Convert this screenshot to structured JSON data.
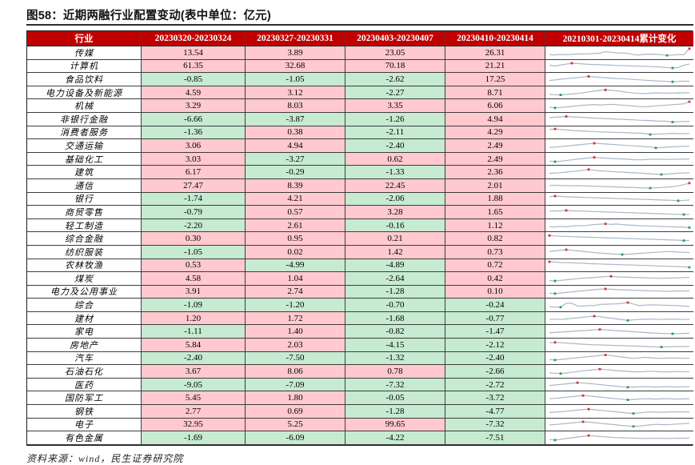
{
  "figure": {
    "title": "图58：近期两融行业配置变动(表中单位：亿元)",
    "source_note": "资料来源：wind，民生证券研究院"
  },
  "colors": {
    "header_bg": "#C00000",
    "header_text": "#FFFFFF",
    "positive_bg": "#FFC9CF",
    "negative_bg": "#C6EBD0",
    "industry_bg": "#FFFFFF",
    "spark_line": "#A9B8C7",
    "spark_high_marker": "#D9302C",
    "spark_low_marker": "#2E9E4F"
  },
  "chart_data": {
    "type": "table",
    "title": "图58：近期两融行业配置变动(表中单位：亿元)",
    "unit": "亿元",
    "columns": [
      "行业",
      "20230320-20230324",
      "20230327-20230331",
      "20230403-20230407",
      "20230410-20230414",
      "20210301-20230414累计变化"
    ],
    "cell_color_rule": "value >= 0 -> pink (#FFC9CF); value < 0 -> green (#C6EBD0)",
    "spark_legend": {
      "high_marker": "red dot = period high",
      "low_marker": "green dot = period low",
      "x_range": "20210301-20230414"
    },
    "rows": [
      {
        "industry": "传媒",
        "values": [
          13.54,
          3.89,
          23.05,
          26.31
        ],
        "spark": [
          30,
          28,
          33,
          30,
          34,
          38,
          36,
          40,
          42,
          46,
          62,
          56,
          50,
          48,
          44,
          30,
          28,
          33,
          36,
          33,
          30,
          22,
          26,
          31,
          29,
          95
        ]
      },
      {
        "industry": "计算机",
        "values": [
          61.35,
          32.68,
          70.18,
          21.21
        ],
        "spark": [
          55,
          46,
          58,
          66,
          76,
          72,
          68,
          64,
          62,
          60,
          58,
          55,
          52,
          50,
          48,
          46,
          44,
          42,
          40,
          38,
          34,
          30,
          24,
          30,
          55,
          68
        ]
      },
      {
        "industry": "食品饮料",
        "values": [
          -0.85,
          -1.05,
          -2.62,
          17.25
        ],
        "spark": [
          36,
          42,
          50,
          56,
          62,
          68,
          74,
          80,
          76,
          70,
          66,
          62,
          58,
          56,
          52,
          48,
          44,
          40,
          36,
          32,
          30,
          26,
          22,
          26,
          30,
          28
        ]
      },
      {
        "industry": "电力设备及新能源",
        "values": [
          4.59,
          3.12,
          -2.27,
          8.71
        ],
        "spark": [
          34,
          30,
          28,
          32,
          38,
          44,
          52,
          60,
          68,
          76,
          82,
          78,
          72,
          64,
          56,
          48,
          44,
          42,
          46,
          50,
          48,
          46,
          48,
          50,
          49,
          52
        ]
      },
      {
        "industry": "机械",
        "values": [
          3.29,
          8.03,
          3.35,
          6.06
        ],
        "spark": [
          32,
          26,
          30,
          36,
          42,
          48,
          54,
          58,
          62,
          58,
          60,
          64,
          60,
          56,
          52,
          46,
          40,
          38,
          42,
          48,
          52,
          56,
          60,
          64,
          70,
          92
        ]
      },
      {
        "industry": "非银行金融",
        "values": [
          -6.66,
          -3.87,
          -1.26,
          4.94
        ],
        "spark": [
          68,
          72,
          76,
          80,
          76,
          72,
          70,
          66,
          62,
          60,
          58,
          54,
          52,
          50,
          46,
          44,
          40,
          38,
          36,
          32,
          30,
          28,
          20,
          24,
          26,
          28
        ]
      },
      {
        "industry": "消费者服务",
        "values": [
          -1.36,
          0.38,
          -2.11,
          4.29
        ],
        "spark": [
          78,
          84,
          78,
          72,
          68,
          64,
          62,
          58,
          56,
          52,
          50,
          48,
          46,
          44,
          42,
          40,
          38,
          34,
          24,
          28,
          30,
          32,
          36,
          34,
          33,
          35
        ]
      },
      {
        "industry": "交通运输",
        "values": [
          3.06,
          4.94,
          -2.4,
          2.49
        ],
        "spark": [
          30,
          34,
          40,
          46,
          52,
          58,
          64,
          70,
          76,
          72,
          68,
          64,
          60,
          56,
          52,
          48,
          44,
          40,
          36,
          26,
          30,
          34,
          38,
          40,
          42,
          44
        ]
      },
      {
        "industry": "基础化工",
        "values": [
          3.03,
          -3.27,
          0.62,
          2.49
        ],
        "spark": [
          30,
          24,
          30,
          36,
          44,
          52,
          58,
          64,
          70,
          66,
          62,
          58,
          56,
          54,
          50,
          46,
          44,
          46,
          50,
          52,
          50,
          48,
          50,
          52,
          51,
          53
        ]
      },
      {
        "industry": "建筑",
        "values": [
          6.17,
          -0.29,
          -1.33,
          2.36
        ],
        "spark": [
          36,
          40,
          44,
          50,
          56,
          62,
          70,
          78,
          70,
          64,
          60,
          56,
          52,
          50,
          46,
          42,
          40,
          36,
          32,
          28,
          24,
          28,
          34,
          38,
          40,
          42
        ]
      },
      {
        "industry": "通信",
        "values": [
          27.47,
          8.39,
          22.45,
          2.01
        ],
        "spark": [
          52,
          54,
          52,
          50,
          48,
          50,
          48,
          46,
          44,
          42,
          40,
          38,
          36,
          34,
          32,
          30,
          28,
          26,
          24,
          28,
          30,
          34,
          40,
          48,
          60,
          78
        ]
      },
      {
        "industry": "银行",
        "values": [
          -1.74,
          4.21,
          -2.06,
          1.88
        ],
        "spark": [
          70,
          76,
          72,
          68,
          66,
          64,
          62,
          60,
          58,
          56,
          54,
          52,
          50,
          48,
          46,
          44,
          42,
          40,
          38,
          36,
          34,
          32,
          30,
          26,
          30,
          34
        ]
      },
      {
        "industry": "商贸零售",
        "values": [
          -0.79,
          0.57,
          3.28,
          1.65
        ],
        "spark": [
          60,
          62,
          64,
          68,
          64,
          62,
          60,
          58,
          56,
          54,
          52,
          50,
          48,
          46,
          44,
          42,
          40,
          38,
          36,
          34,
          32,
          30,
          28,
          26,
          24,
          26
        ]
      },
      {
        "industry": "轻工制造",
        "values": [
          -2.2,
          2.61,
          -0.16,
          1.12
        ],
        "spark": [
          40,
          36,
          42,
          38,
          46,
          52,
          48,
          56,
          62,
          66,
          70,
          64,
          68,
          62,
          58,
          54,
          50,
          48,
          46,
          44,
          42,
          40,
          38,
          36,
          34,
          30
        ]
      },
      {
        "industry": "综合金融",
        "values": [
          0.3,
          0.95,
          0.21,
          0.82
        ],
        "spark": [
          82,
          78,
          74,
          72,
          70,
          68,
          66,
          64,
          62,
          60,
          58,
          56,
          54,
          52,
          50,
          48,
          46,
          44,
          42,
          40,
          38,
          36,
          34,
          32,
          28,
          30
        ]
      },
      {
        "industry": "纺织服装",
        "values": [
          -1.05,
          0.02,
          1.42,
          0.73
        ],
        "spark": [
          58,
          64,
          70,
          76,
          70,
          64,
          58,
          52,
          46,
          40,
          36,
          32,
          28,
          24,
          28,
          32,
          36,
          40,
          44,
          48,
          52,
          56,
          54,
          50,
          48,
          46
        ]
      },
      {
        "industry": "农林牧渔",
        "values": [
          0.53,
          -4.99,
          -4.89,
          0.72
        ],
        "spark": [
          84,
          80,
          76,
          74,
          72,
          70,
          68,
          64,
          62,
          60,
          58,
          56,
          54,
          52,
          50,
          48,
          46,
          44,
          42,
          40,
          38,
          36,
          34,
          32,
          30,
          24
        ]
      },
      {
        "industry": "煤炭",
        "values": [
          4.58,
          1.04,
          -2.64,
          0.42
        ],
        "spark": [
          28,
          24,
          30,
          36,
          42,
          48,
          54,
          58,
          62,
          66,
          70,
          74,
          68,
          66,
          64,
          62,
          60,
          58,
          56,
          54,
          52,
          54,
          56,
          58,
          60,
          62
        ]
      },
      {
        "industry": "电力及公用事业",
        "values": [
          3.91,
          2.74,
          -1.28,
          0.1
        ],
        "spark": [
          30,
          26,
          32,
          38,
          44,
          50,
          56,
          62,
          68,
          72,
          76,
          72,
          68,
          66,
          64,
          62,
          60,
          58,
          56,
          54,
          52,
          50,
          52,
          54,
          53,
          55
        ]
      },
      {
        "industry": "综合",
        "values": [
          -1.09,
          -1.2,
          -0.7,
          -0.24
        ],
        "spark": [
          30,
          28,
          26,
          70,
          66,
          40,
          38,
          44,
          42,
          56,
          58,
          60,
          62,
          66,
          76,
          60,
          42,
          48,
          52,
          50,
          48,
          46,
          44,
          42,
          38,
          34
        ]
      },
      {
        "industry": "建材",
        "values": [
          1.2,
          1.72,
          -1.68,
          -0.77
        ],
        "spark": [
          40,
          44,
          40,
          46,
          52,
          58,
          64,
          70,
          76,
          70,
          62,
          54,
          46,
          38,
          30,
          36,
          40,
          42,
          44,
          42,
          40,
          42,
          44,
          42,
          40,
          42
        ]
      },
      {
        "industry": "家电",
        "values": [
          -1.11,
          1.4,
          -0.82,
          -1.47
        ],
        "spark": [
          34,
          38,
          42,
          46,
          50,
          54,
          58,
          62,
          66,
          70,
          66,
          62,
          58,
          54,
          50,
          46,
          42,
          38,
          34,
          30,
          28,
          26,
          24,
          26,
          28,
          30
        ]
      },
      {
        "industry": "房地产",
        "values": [
          5.84,
          2.03,
          -4.15,
          -2.12
        ],
        "spark": [
          72,
          78,
          74,
          70,
          66,
          62,
          58,
          54,
          52,
          50,
          48,
          46,
          44,
          42,
          40,
          38,
          36,
          34,
          32,
          30,
          28,
          30,
          32,
          34,
          33,
          35
        ]
      },
      {
        "industry": "汽车",
        "values": [
          -2.4,
          -7.5,
          -1.32,
          -2.4
        ],
        "spark": [
          30,
          26,
          32,
          38,
          44,
          50,
          56,
          62,
          68,
          74,
          80,
          74,
          66,
          58,
          50,
          44,
          48,
          54,
          50,
          46,
          44,
          46,
          48,
          46,
          44,
          46
        ]
      },
      {
        "industry": "石油石化",
        "values": [
          3.67,
          8.06,
          0.78,
          -2.66
        ],
        "spark": [
          34,
          30,
          26,
          32,
          40,
          48,
          56,
          62,
          68,
          74,
          70,
          64,
          58,
          54,
          50,
          46,
          44,
          48,
          52,
          48,
          46,
          44,
          46,
          48,
          46,
          48
        ]
      },
      {
        "industry": "医药",
        "values": [
          -9.05,
          -7.09,
          -7.32,
          -2.72
        ],
        "spark": [
          44,
          50,
          56,
          62,
          68,
          74,
          70,
          66,
          60,
          54,
          48,
          42,
          36,
          30,
          26,
          28,
          30,
          32,
          30,
          28,
          30,
          32,
          30,
          28,
          30,
          32
        ]
      },
      {
        "industry": "国防军工",
        "values": [
          5.45,
          1.8,
          -0.05,
          -3.72
        ],
        "spark": [
          40,
          44,
          50,
          56,
          62,
          68,
          74,
          70,
          64,
          58,
          52,
          46,
          40,
          34,
          28,
          32,
          36,
          40,
          38,
          36,
          38,
          40,
          38,
          36,
          38,
          40
        ]
      },
      {
        "industry": "钢铁",
        "values": [
          2.77,
          0.69,
          -1.28,
          -4.77
        ],
        "spark": [
          38,
          42,
          46,
          52,
          58,
          64,
          70,
          74,
          68,
          62,
          56,
          50,
          44,
          38,
          32,
          28,
          34,
          40,
          44,
          42,
          40,
          42,
          44,
          46,
          44,
          46
        ]
      },
      {
        "industry": "电子",
        "values": [
          32.95,
          5.25,
          99.65,
          -7.32
        ],
        "spark": [
          42,
          46,
          52,
          58,
          64,
          70,
          76,
          72,
          66,
          60,
          54,
          48,
          42,
          36,
          30,
          26,
          30,
          36,
          42,
          48,
          46,
          44,
          48,
          52,
          56,
          60
        ]
      },
      {
        "industry": "有色金属",
        "values": [
          -1.69,
          -6.09,
          -4.22,
          -7.51
        ],
        "spark": [
          30,
          26,
          34,
          42,
          50,
          58,
          66,
          74,
          70,
          64,
          60,
          56,
          52,
          50,
          48,
          46,
          44,
          42,
          44,
          46,
          44,
          42,
          44,
          46,
          45,
          47
        ]
      }
    ]
  }
}
